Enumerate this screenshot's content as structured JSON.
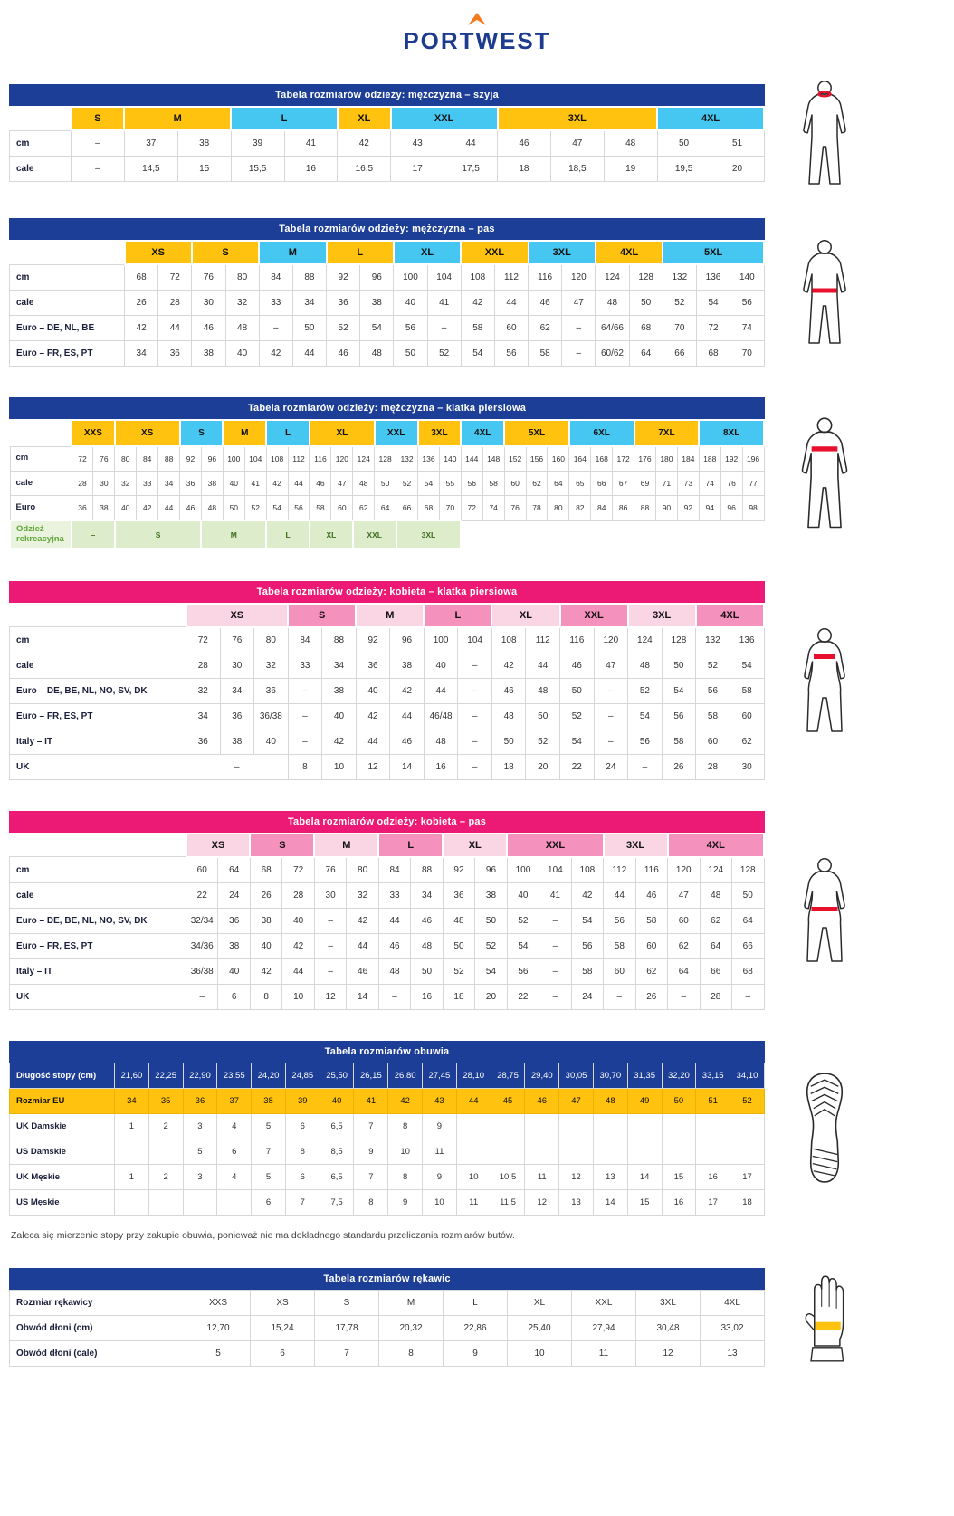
{
  "logo": {
    "brand": "PORTWEST"
  },
  "note": "Zaleca się mierzenie stopy przy zakupie obuwia, ponieważ nie ma dokładnego standardu przeliczania rozmiarów butów.",
  "colors": {
    "navy": "#1c3e96",
    "gold": "#ffc20e",
    "cyan": "#45c7f1",
    "pink": "#ec1a74",
    "pink_light": "#fad5e4",
    "pink_mid": "#f491bd",
    "green_row": "#ddeccb",
    "highlight_red": "#e8112d",
    "logo_orange": "#f47b20"
  },
  "tables": [
    {
      "id": "men-neck",
      "theme": "navy",
      "title": "Tabela rozmiarów odzieży: mężczyzna – szyja",
      "figure": "male-neck",
      "label_width": 68,
      "columns": 13,
      "sizes": [
        {
          "label": "S",
          "span": 1,
          "color": "gold"
        },
        {
          "label": "M",
          "span": 2,
          "color": "gold"
        },
        {
          "label": "L",
          "span": 2,
          "color": "cyan"
        },
        {
          "label": "XL",
          "span": 1,
          "color": "gold"
        },
        {
          "label": "XXL",
          "span": 2,
          "color": "cyan"
        },
        {
          "label": "3XL",
          "span": 3,
          "color": "gold"
        },
        {
          "label": "4XL",
          "span": 2,
          "color": "cyan"
        }
      ],
      "rows": [
        {
          "label": "cm",
          "cells": [
            "–",
            "37",
            "38",
            "39",
            "41",
            "42",
            "43",
            "44",
            "46",
            "47",
            "48",
            "50",
            "51"
          ]
        },
        {
          "label": "cale",
          "cells": [
            "–",
            "14,5",
            "15",
            "15,5",
            "16",
            "16,5",
            "17",
            "17,5",
            "18",
            "18,5",
            "19",
            "19,5",
            "20"
          ]
        }
      ]
    },
    {
      "id": "men-waist",
      "theme": "navy",
      "title": "Tabela rozmiarów odzieży: mężczyzna – pas",
      "figure": "male-waist",
      "label_width": 127,
      "columns": 19,
      "sizes": [
        {
          "label": "XS",
          "span": 2,
          "color": "gold"
        },
        {
          "label": "S",
          "span": 2,
          "color": "gold"
        },
        {
          "label": "M",
          "span": 2,
          "color": "cyan"
        },
        {
          "label": "L",
          "span": 2,
          "color": "gold"
        },
        {
          "label": "XL",
          "span": 2,
          "color": "cyan"
        },
        {
          "label": "XXL",
          "span": 2,
          "color": "gold"
        },
        {
          "label": "3XL",
          "span": 2,
          "color": "cyan"
        },
        {
          "label": "4XL",
          "span": 2,
          "color": "gold"
        },
        {
          "label": "5XL",
          "span": 3,
          "color": "cyan"
        }
      ],
      "rows": [
        {
          "label": "cm",
          "cells": [
            "68",
            "72",
            "76",
            "80",
            "84",
            "88",
            "92",
            "96",
            "100",
            "104",
            "108",
            "112",
            "116",
            "120",
            "124",
            "128",
            "132",
            "136",
            "140"
          ]
        },
        {
          "label": "cale",
          "cells": [
            "26",
            "28",
            "30",
            "32",
            "33",
            "34",
            "36",
            "38",
            "40",
            "41",
            "42",
            "44",
            "46",
            "47",
            "48",
            "50",
            "52",
            "54",
            "56"
          ]
        },
        {
          "label": "Euro – DE, NL, BE",
          "cells": [
            "42",
            "44",
            "46",
            "48",
            "–",
            "50",
            "52",
            "54",
            "56",
            "–",
            "58",
            "60",
            "62",
            "–",
            "64/66",
            "68",
            "70",
            "72",
            "74"
          ]
        },
        {
          "label": "Euro – FR, ES, PT",
          "cells": [
            "34",
            "36",
            "38",
            "40",
            "42",
            "44",
            "46",
            "48",
            "50",
            "52",
            "54",
            "56",
            "58",
            "–",
            "60/62",
            "64",
            "66",
            "68",
            "70"
          ]
        }
      ]
    },
    {
      "id": "men-chest",
      "theme": "navy",
      "title": "Tabela rozmiarów odzieży: mężczyzna – klatka piersiowa",
      "figure": "male-chest",
      "label_width": 68,
      "columns": 32,
      "dense": true,
      "sizes": [
        {
          "label": "XXS",
          "span": 2,
          "color": "gold"
        },
        {
          "label": "XS",
          "span": 3,
          "color": "gold"
        },
        {
          "label": "S",
          "span": 2,
          "color": "cyan"
        },
        {
          "label": "M",
          "span": 2,
          "color": "gold"
        },
        {
          "label": "L",
          "span": 2,
          "color": "cyan"
        },
        {
          "label": "XL",
          "span": 3,
          "color": "gold"
        },
        {
          "label": "XXL",
          "span": 2,
          "color": "cyan"
        },
        {
          "label": "3XL",
          "span": 2,
          "color": "gold"
        },
        {
          "label": "4XL",
          "span": 2,
          "color": "cyan"
        },
        {
          "label": "5XL",
          "span": 3,
          "color": "gold"
        },
        {
          "label": "6XL",
          "span": 3,
          "color": "cyan"
        },
        {
          "label": "7XL",
          "span": 3,
          "color": "gold"
        },
        {
          "label": "8XL",
          "span": 3,
          "color": "cyan"
        }
      ],
      "rows": [
        {
          "label": "cm",
          "cells": [
            "72",
            "76",
            "80",
            "84",
            "88",
            "92",
            "96",
            "100",
            "104",
            "108",
            "112",
            "116",
            "120",
            "124",
            "128",
            "132",
            "136",
            "140",
            "144",
            "148",
            "152",
            "156",
            "160",
            "164",
            "168",
            "172",
            "176",
            "180",
            "184",
            "188",
            "192",
            "196"
          ]
        },
        {
          "label": "cale",
          "cells": [
            "28",
            "30",
            "32",
            "33",
            "34",
            "36",
            "38",
            "40",
            "41",
            "42",
            "44",
            "46",
            "47",
            "48",
            "50",
            "52",
            "54",
            "55",
            "56",
            "58",
            "60",
            "62",
            "64",
            "65",
            "66",
            "67",
            "69",
            "71",
            "73",
            "74",
            "76",
            "77"
          ]
        },
        {
          "label": "Euro",
          "cells": [
            "36",
            "38",
            "40",
            "42",
            "44",
            "46",
            "48",
            "50",
            "52",
            "54",
            "56",
            "58",
            "60",
            "62",
            "64",
            "66",
            "68",
            "70",
            "72",
            "74",
            "76",
            "78",
            "80",
            "82",
            "84",
            "86",
            "88",
            "90",
            "92",
            "94",
            "96",
            "98"
          ]
        },
        {
          "label": "Odzież rekreacyjna",
          "style": "green",
          "cells": [
            {
              "t": "–",
              "span": 2
            },
            {
              "t": "S",
              "span": 4
            },
            {
              "t": "M",
              "span": 3
            },
            {
              "t": "L",
              "span": 2
            },
            {
              "t": "XL",
              "span": 2
            },
            {
              "t": "XXL",
              "span": 2
            },
            {
              "t": "3XL",
              "span": 3
            },
            {
              "t": "",
              "span": 14,
              "blank": true
            }
          ]
        }
      ]
    },
    {
      "id": "women-chest",
      "theme": "pink",
      "title": "Tabela rozmiarów odzieży: kobieta – klatka piersiowa",
      "figure": "female-chest",
      "label_width": 195,
      "columns": 17,
      "sizes": [
        {
          "label": "XS",
          "span": 3,
          "color": "plight"
        },
        {
          "label": "S",
          "span": 2,
          "color": "pmid"
        },
        {
          "label": "M",
          "span": 2,
          "color": "plight"
        },
        {
          "label": "L",
          "span": 2,
          "color": "pmid"
        },
        {
          "label": "XL",
          "span": 2,
          "color": "plight"
        },
        {
          "label": "XXL",
          "span": 2,
          "color": "pmid"
        },
        {
          "label": "3XL",
          "span": 2,
          "color": "plight"
        },
        {
          "label": "4XL",
          "span": 2,
          "color": "pmid"
        }
      ],
      "rows": [
        {
          "label": "cm",
          "cells": [
            "72",
            "76",
            "80",
            "84",
            "88",
            "92",
            "96",
            "100",
            "104",
            "108",
            "112",
            "116",
            "120",
            "124",
            "128",
            "132",
            "136"
          ]
        },
        {
          "label": "cale",
          "cells": [
            "28",
            "30",
            "32",
            "33",
            "34",
            "36",
            "38",
            "40",
            "–",
            "42",
            "44",
            "46",
            "47",
            "48",
            "50",
            "52",
            "54"
          ]
        },
        {
          "label": "Euro – DE, BE, NL, NO, SV, DK",
          "cells": [
            "32",
            "34",
            "36",
            "–",
            "38",
            "40",
            "42",
            "44",
            "–",
            "46",
            "48",
            "50",
            "–",
            "52",
            "54",
            "56",
            "58"
          ]
        },
        {
          "label": "Euro – FR, ES, PT",
          "cells": [
            "34",
            "36",
            "36/38",
            "–",
            "40",
            "42",
            "44",
            "46/48",
            "–",
            "48",
            "50",
            "52",
            "–",
            "54",
            "56",
            "58",
            "60"
          ]
        },
        {
          "label": "Italy – IT",
          "cells": [
            "36",
            "38",
            "40",
            "–",
            "42",
            "44",
            "46",
            "48",
            "–",
            "50",
            "52",
            "54",
            "–",
            "56",
            "58",
            "60",
            "62"
          ]
        },
        {
          "label": "UK",
          "cells": [
            {
              "t": "–",
              "span": 3
            },
            "8",
            "10",
            "12",
            "14",
            "16",
            "–",
            "18",
            "20",
            "22",
            "24",
            "–",
            "26",
            "28",
            "30"
          ]
        }
      ]
    },
    {
      "id": "women-waist",
      "theme": "pink",
      "title": "Tabela rozmiarów odzieży: kobieta – pas",
      "figure": "female-waist",
      "label_width": 195,
      "columns": 18,
      "sizes": [
        {
          "label": "XS",
          "span": 2,
          "color": "plight"
        },
        {
          "label": "S",
          "span": 2,
          "color": "pmid"
        },
        {
          "label": "M",
          "span": 2,
          "color": "plight"
        },
        {
          "label": "L",
          "span": 2,
          "color": "pmid"
        },
        {
          "label": "XL",
          "span": 2,
          "color": "plight"
        },
        {
          "label": "XXL",
          "span": 3,
          "color": "pmid"
        },
        {
          "label": "3XL",
          "span": 2,
          "color": "plight"
        },
        {
          "label": "4XL",
          "span": 3,
          "color": "pmid"
        }
      ],
      "rows": [
        {
          "label": "cm",
          "cells": [
            "60",
            "64",
            "68",
            "72",
            "76",
            "80",
            "84",
            "88",
            "92",
            "96",
            "100",
            "104",
            "108",
            "112",
            "116",
            "120",
            "124",
            "128"
          ]
        },
        {
          "label": "cale",
          "cells": [
            "22",
            "24",
            "26",
            "28",
            "30",
            "32",
            "33",
            "34",
            "36",
            "38",
            "40",
            "41",
            "42",
            "44",
            "46",
            "47",
            "48",
            "50"
          ]
        },
        {
          "label": "Euro – DE, BE, NL, NO, SV, DK",
          "cells": [
            "32/34",
            "36",
            "38",
            "40",
            "–",
            "42",
            "44",
            "46",
            "48",
            "50",
            "52",
            "–",
            "54",
            "56",
            "58",
            "60",
            "62",
            "64"
          ]
        },
        {
          "label": "Euro – FR, ES, PT",
          "cells": [
            "34/36",
            "38",
            "40",
            "42",
            "–",
            "44",
            "46",
            "48",
            "50",
            "52",
            "54",
            "–",
            "56",
            "58",
            "60",
            "62",
            "64",
            "66"
          ]
        },
        {
          "label": "Italy – IT",
          "cells": [
            "36/38",
            "40",
            "42",
            "44",
            "–",
            "46",
            "48",
            "50",
            "52",
            "54",
            "56",
            "–",
            "58",
            "60",
            "62",
            "64",
            "66",
            "68"
          ]
        },
        {
          "label": "UK",
          "cells": [
            "–",
            "6",
            "8",
            "10",
            "12",
            "14",
            "–",
            "16",
            "18",
            "20",
            "22",
            "–",
            "24",
            "–",
            "26",
            "–",
            "28",
            "–"
          ]
        }
      ]
    },
    {
      "id": "footwear",
      "theme": "navy",
      "title": "Tabela rozmiarów obuwia",
      "figure": "boot-sole",
      "label_width": 116,
      "columns": 19,
      "tight": true,
      "rows": [
        {
          "label": "Długość stopy (cm)",
          "style": "navy",
          "cells": [
            "21,60",
            "22,25",
            "22,90",
            "23,55",
            "24,20",
            "24,85",
            "25,50",
            "26,15",
            "26,80",
            "27,45",
            "28,10",
            "28,75",
            "29,40",
            "30,05",
            "30,70",
            "31,35",
            "32,20",
            "33,15",
            "34,10"
          ]
        },
        {
          "label": "Rozmiar EU",
          "style": "gold",
          "cells": [
            "34",
            "35",
            "36",
            "37",
            "38",
            "39",
            "40",
            "41",
            "42",
            "43",
            "44",
            "45",
            "46",
            "47",
            "48",
            "49",
            "50",
            "51",
            "52"
          ]
        },
        {
          "label": "UK Damskie",
          "cells": [
            "1",
            "2",
            "3",
            "4",
            "5",
            "6",
            "6,5",
            "7",
            "8",
            "9",
            "",
            "",
            "",
            "",
            "",
            "",
            "",
            "",
            ""
          ]
        },
        {
          "label": "US Damskie",
          "cells": [
            "",
            "",
            "5",
            "6",
            "7",
            "8",
            "8,5",
            "9",
            "10",
            "11",
            "",
            "",
            "",
            "",
            "",
            "",
            "",
            "",
            ""
          ]
        },
        {
          "label": "UK Męskie",
          "cells": [
            "1",
            "2",
            "3",
            "4",
            "5",
            "6",
            "6,5",
            "7",
            "8",
            "9",
            "10",
            "10,5",
            "11",
            "12",
            "13",
            "14",
            "15",
            "16",
            "17"
          ]
        },
        {
          "label": "US Męskie",
          "cells": [
            "",
            "",
            "",
            "",
            "6",
            "7",
            "7,5",
            "8",
            "9",
            "10",
            "11",
            "11,5",
            "12",
            "13",
            "14",
            "15",
            "16",
            "17",
            "18"
          ]
        }
      ]
    },
    {
      "id": "gloves",
      "theme": "navy",
      "title": "Tabela rozmiarów rękawic",
      "figure": "glove",
      "label_width": 195,
      "columns": 9,
      "rows": [
        {
          "label": "Rozmiar rękawicy",
          "cells": [
            "XXS",
            "XS",
            "S",
            "M",
            "L",
            "XL",
            "XXL",
            "3XL",
            "4XL"
          ]
        },
        {
          "label": "Obwód dłoni (cm)",
          "cells": [
            "12,70",
            "15,24",
            "17,78",
            "20,32",
            "22,86",
            "25,40",
            "27,94",
            "30,48",
            "33,02"
          ]
        },
        {
          "label": "Obwód dłoni (cale)",
          "cells": [
            "5",
            "6",
            "7",
            "8",
            "9",
            "10",
            "11",
            "12",
            "13"
          ]
        }
      ]
    }
  ]
}
